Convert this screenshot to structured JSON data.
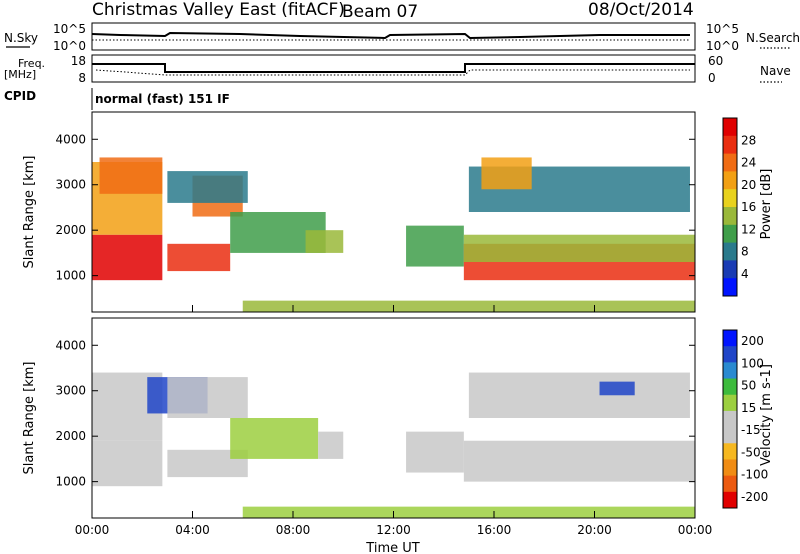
{
  "header": {
    "title": "Christmas Valley East (fitACF)",
    "beam": "Beam 07",
    "date": "08/Oct/2014"
  },
  "panels": {
    "nsky": {
      "label": "N.Sky",
      "y_top": "10^5",
      "y_bottom": "10^0"
    },
    "nsearch": {
      "label": "N.Search",
      "y_top": "10^5",
      "y_bottom": "10^0"
    },
    "freq": {
      "label_top": "Freq.",
      "label_unit": "[MHz]",
      "y_top": "18",
      "y_bottom": "8"
    },
    "nave": {
      "label": "Nave",
      "y_top": "60",
      "y_bottom": "0"
    },
    "cpid": {
      "label": "CPID",
      "text": "normal (fast) 151 IF"
    }
  },
  "colors": {
    "power": [
      "#0014ff",
      "#1a3cb4",
      "#2a7a8c",
      "#3f9e4a",
      "#9ab83a",
      "#e8d21e",
      "#f2a014",
      "#f06c14",
      "#ea2e10",
      "#e00000"
    ],
    "velocity": [
      "#0014ff",
      "#2045c8",
      "#2a8ad0",
      "#3dbb3d",
      "#9ccf40",
      "#c8c8c8",
      "#c8c8c8",
      "#f6b820",
      "#f08c14",
      "#ec5a10",
      "#e00000"
    ]
  },
  "chart_data": [
    {
      "type": "heatmap",
      "title": "Power",
      "xlabel": "",
      "ylabel": "Slant Range [km]",
      "xlim": [
        0,
        24
      ],
      "ylim": [
        200,
        4600
      ],
      "x_ticks": [
        "00:00",
        "04:00",
        "08:00",
        "12:00",
        "16:00",
        "20:00",
        "00:00"
      ],
      "y_ticks": [
        "1000",
        "2000",
        "3000",
        "4000"
      ],
      "colorbar": {
        "label": "Power [dB]",
        "ticks": [
          "4",
          "8",
          "12",
          "16",
          "20",
          "24",
          "28"
        ],
        "range": [
          0,
          30
        ]
      },
      "regions": [
        {
          "x": [
            0.0,
            2.8
          ],
          "y": [
            900,
            1900
          ],
          "value": 28
        },
        {
          "x": [
            0.0,
            2.8
          ],
          "y": [
            1900,
            3500
          ],
          "value": 18
        },
        {
          "x": [
            0.3,
            2.8
          ],
          "y": [
            2800,
            3600
          ],
          "value": 22
        },
        {
          "x": [
            3.0,
            5.5
          ],
          "y": [
            1100,
            1700
          ],
          "value": 24
        },
        {
          "x": [
            4.0,
            6.0
          ],
          "y": [
            2300,
            3200
          ],
          "value": 22
        },
        {
          "x": [
            3.0,
            6.2
          ],
          "y": [
            2600,
            3300
          ],
          "value": 6
        },
        {
          "x": [
            5.5,
            9.3
          ],
          "y": [
            1500,
            2400
          ],
          "value": 10
        },
        {
          "x": [
            8.5,
            10.0
          ],
          "y": [
            1500,
            2000
          ],
          "value": 12
        },
        {
          "x": [
            6.0,
            24.0
          ],
          "y": [
            200,
            450
          ],
          "value": 14
        },
        {
          "x": [
            12.5,
            14.8
          ],
          "y": [
            1200,
            2100
          ],
          "value": 10
        },
        {
          "x": [
            14.8,
            24.0
          ],
          "y": [
            900,
            1700
          ],
          "value": 26
        },
        {
          "x": [
            14.8,
            24.0
          ],
          "y": [
            1300,
            1900
          ],
          "value": 12
        },
        {
          "x": [
            15.0,
            23.8
          ],
          "y": [
            2400,
            3400
          ],
          "value": 6
        },
        {
          "x": [
            15.5,
            17.5
          ],
          "y": [
            2900,
            3600
          ],
          "value": 20
        }
      ]
    },
    {
      "type": "heatmap",
      "title": "Velocity",
      "xlabel": "Time UT",
      "ylabel": "Slant Range [km]",
      "xlim": [
        0,
        24
      ],
      "ylim": [
        200,
        4600
      ],
      "x_ticks": [
        "00:00",
        "04:00",
        "08:00",
        "12:00",
        "16:00",
        "20:00",
        "00:00"
      ],
      "y_ticks": [
        "1000",
        "2000",
        "3000",
        "4000"
      ],
      "colorbar": {
        "label": "Velocity [m s-1]",
        "ticks": [
          "200",
          "100",
          "50",
          "15",
          "-15",
          "-50",
          "-100",
          "-200"
        ],
        "range": [
          -250,
          250
        ]
      },
      "regions": [
        {
          "x": [
            0.0,
            2.8
          ],
          "y": [
            900,
            1900
          ],
          "value": 0
        },
        {
          "x": [
            0.0,
            2.8
          ],
          "y": [
            1900,
            3400
          ],
          "value": 0
        },
        {
          "x": [
            2.2,
            4.6
          ],
          "y": [
            2500,
            3300
          ],
          "value": 200
        },
        {
          "x": [
            3.0,
            6.2
          ],
          "y": [
            1100,
            1700
          ],
          "value": 0
        },
        {
          "x": [
            3.0,
            6.2
          ],
          "y": [
            2400,
            3300
          ],
          "value": 0
        },
        {
          "x": [
            5.5,
            9.0
          ],
          "y": [
            1500,
            2400
          ],
          "value": 40
        },
        {
          "x": [
            9.0,
            10.0
          ],
          "y": [
            1500,
            2100
          ],
          "value": -60
        },
        {
          "x": [
            6.0,
            24.0
          ],
          "y": [
            200,
            450
          ],
          "value": 30
        },
        {
          "x": [
            12.5,
            14.8
          ],
          "y": [
            1200,
            2100
          ],
          "value": 0
        },
        {
          "x": [
            14.8,
            24.0
          ],
          "y": [
            1000,
            1900
          ],
          "value": 0
        },
        {
          "x": [
            15.0,
            23.8
          ],
          "y": [
            2400,
            3400
          ],
          "value": 0
        },
        {
          "x": [
            20.2,
            21.6
          ],
          "y": [
            2900,
            3200
          ],
          "value": 200
        }
      ]
    }
  ]
}
